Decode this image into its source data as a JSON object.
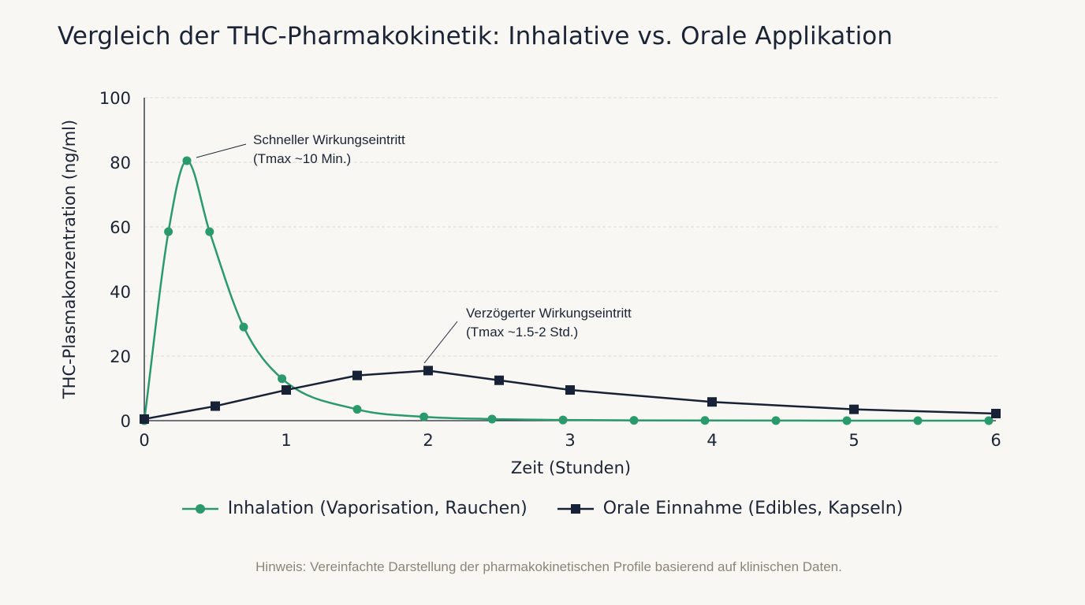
{
  "page": {
    "background": "#f8f7f3"
  },
  "title": "Vergleich der THC-Pharmakokinetik: Inhalative vs. Orale Applikation",
  "chart_data": {
    "type": "line",
    "xlabel": "Zeit (Stunden)",
    "ylabel": "THC-Plasmakonzentration (ng/ml)",
    "xlim": [
      0,
      6
    ],
    "ylim": [
      0,
      100
    ],
    "xticks": [
      "0",
      "1",
      "2",
      "3",
      "4",
      "5",
      "6"
    ],
    "yticks": [
      "0",
      "20",
      "40",
      "60",
      "80",
      "100"
    ],
    "grid": "horizontal-dashed",
    "legend_position": "bottom-center",
    "series": [
      {
        "name": "Inhalation (Vaporisation, Rauchen)",
        "color": "#2a9a6c",
        "marker": "circle",
        "x": [
          0,
          0.17,
          0.3,
          0.46,
          0.7,
          0.97,
          1.5,
          1.97,
          2.45,
          2.95,
          3.45,
          3.95,
          4.45,
          4.95,
          5.45,
          5.95
        ],
        "y": [
          0,
          58.5,
          80.5,
          58.5,
          29,
          13,
          3.5,
          1.2,
          0.5,
          0.2,
          0.1,
          0.05,
          0.02,
          0.01,
          0,
          0
        ]
      },
      {
        "name": "Orale Einnahme (Edibles, Kapseln)",
        "color": "#172236",
        "marker": "square",
        "x": [
          0,
          0.5,
          1,
          1.5,
          2,
          2.5,
          3,
          4,
          5,
          6
        ],
        "y": [
          0.5,
          4.5,
          9.5,
          14,
          15.5,
          12.5,
          9.5,
          5.8,
          3.5,
          2.2
        ]
      }
    ],
    "annotations": [
      {
        "lines": [
          "Schneller Wirkungseintritt",
          "(Tmax ~10 Min.)"
        ],
        "point": [
          0.3,
          80.5
        ]
      },
      {
        "lines": [
          "Verzögerter Wirkungseintritt",
          "(Tmax ~1.5-2 Std.)"
        ],
        "point": [
          2,
          15.5
        ]
      }
    ]
  },
  "note": "Hinweis: Vereinfachte Darstellung der pharmakokinetischen Profile basierend auf klinischen Daten."
}
